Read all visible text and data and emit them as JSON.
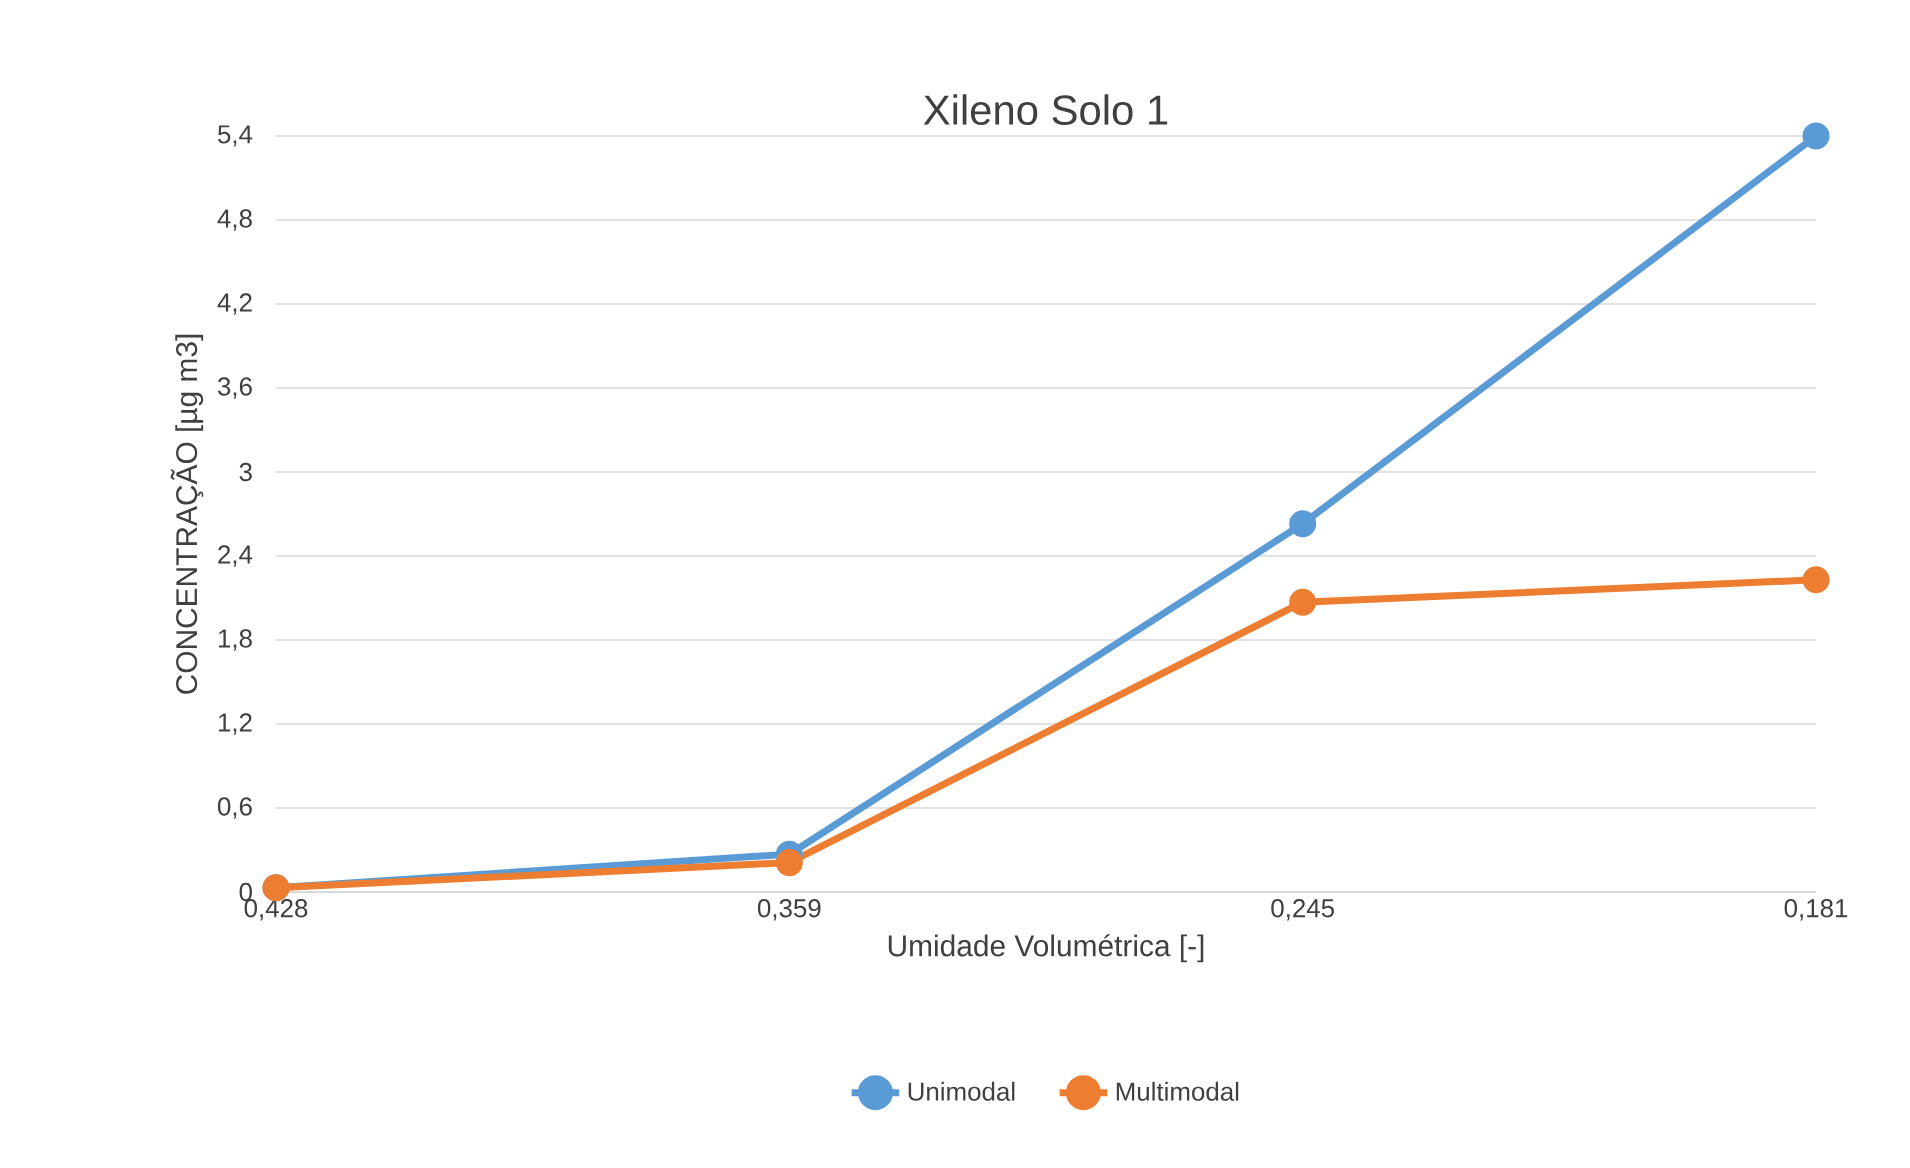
{
  "chart_data": {
    "type": "line",
    "title": "Xileno Solo 1",
    "xlabel": "Umidade Volumétrica [-]",
    "ylabel": "CONCENTRAÇÃO [µg m3]",
    "categories": [
      "0,428",
      "0,359",
      "0,245",
      "0,181"
    ],
    "series": [
      {
        "name": "Unimodal",
        "color": "#5b9bd5",
        "values": [
          0.03,
          0.27,
          2.63,
          5.4
        ]
      },
      {
        "name": "Multimodal",
        "color": "#ed7d31",
        "values": [
          0.03,
          0.21,
          2.07,
          2.23
        ]
      }
    ],
    "ylim": [
      0,
      5.4
    ],
    "yticks": [
      0,
      {
        "value": 0.6,
        "label": "0,6"
      },
      {
        "value": 1.2,
        "label": "1,2"
      },
      {
        "value": 1.8,
        "label": "1,8"
      },
      {
        "value": 2.4,
        "label": "2,4"
      },
      3,
      {
        "value": 3.6,
        "label": "3,6"
      },
      {
        "value": 4.2,
        "label": "4,2"
      },
      {
        "value": 4.8,
        "label": "4,8"
      },
      {
        "value": 5.4,
        "label": "5,4"
      }
    ],
    "grid": "y",
    "legend": "bottom",
    "marker": "circle",
    "line_style": "solid"
  }
}
